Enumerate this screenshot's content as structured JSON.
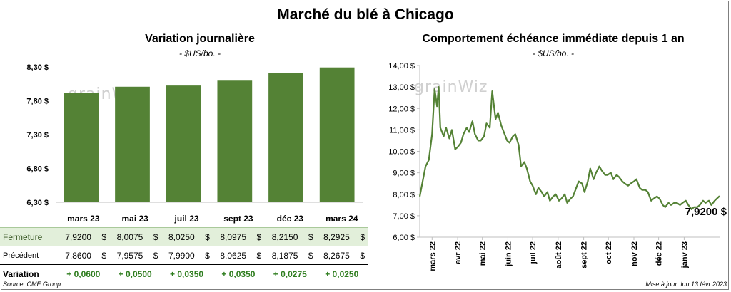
{
  "title": "Marché du blé à Chicago",
  "left": {
    "title": "Variation  journalière",
    "unit": "- $US/bo. -",
    "watermark": "grainWiz"
  },
  "right": {
    "title": "Comportement  échéance immédiate depuis 1 an",
    "unit": "- $US/bo. -",
    "watermark": "grainWiz",
    "last_value_label": "7,9200 $"
  },
  "table": {
    "headers": [
      "mars 23",
      "mai 23",
      "juil 23",
      "sept 23",
      "déc 23",
      "mars 24"
    ],
    "close_label": "Fermeture",
    "close_values": [
      "7,9200",
      "8,0075",
      "8,0250",
      "8,0975",
      "8,2150",
      "8,2925"
    ],
    "prev_label": "Précédent",
    "prev_values": [
      "7,8600",
      "7,9575",
      "7,9900",
      "8,0625",
      "8,1875",
      "8,2675"
    ],
    "var_label": "Variation",
    "var_values": [
      "+ 0,0600",
      "+ 0,0500",
      "+ 0,0350",
      "+ 0,0350",
      "+ 0,0275",
      "+ 0,0250"
    ],
    "currency": "$"
  },
  "footer": {
    "source": "Source: CME Group",
    "updated": "Mise à jour: lun 13 févr 2023"
  },
  "colors": {
    "bar": "#548235",
    "line": "#548235",
    "close_row": "#e2efda",
    "variation": "#2e7d1e"
  },
  "chart_data": [
    {
      "type": "bar",
      "title": "Variation  journalière",
      "categories": [
        "mars 23",
        "mai 23",
        "juil 23",
        "sept 23",
        "déc 23",
        "mars 24"
      ],
      "values": [
        7.92,
        8.0075,
        8.025,
        8.0975,
        8.215,
        8.2925
      ],
      "ylim": [
        6.3,
        8.3
      ],
      "yticks": [
        6.3,
        6.8,
        7.3,
        7.8,
        8.3
      ],
      "ytick_labels": [
        "6,30 $",
        "6,80 $",
        "7,30 $",
        "7,80 $",
        "8,30 $"
      ],
      "grid": false
    },
    {
      "type": "line",
      "title": "Comportement  échéance immédiate depuis 1 an",
      "xlim": [
        "2022-02-14",
        "2023-02-13"
      ],
      "xticks": [
        "2022-03-01",
        "2022-04-01",
        "2022-05-01",
        "2022-06-01",
        "2022-07-01",
        "2022-08-01",
        "2022-09-01",
        "2022-10-01",
        "2022-11-01",
        "2022-12-01",
        "2023-01-01"
      ],
      "xtick_labels": [
        "mars 22",
        "avr 22",
        "mai 22",
        "juin 22",
        "juil 22",
        "août 22",
        "sept 22",
        "oct 22",
        "nov 22",
        "déc 22",
        "janv 23"
      ],
      "ylim": [
        6.0,
        14.0
      ],
      "yticks": [
        6,
        7,
        8,
        9,
        10,
        11,
        12,
        13,
        14
      ],
      "ytick_labels": [
        "6,00 $",
        "7,00 $",
        "8,00 $",
        "9,00 $",
        "10,00 $",
        "11,00 $",
        "12,00 $",
        "13,00 $",
        "14,00 $"
      ],
      "grid": false,
      "series": [
        {
          "x": [
            "2022-02-14",
            "2022-02-21",
            "2022-02-25",
            "2022-03-01",
            "2022-03-04",
            "2022-03-07",
            "2022-03-09",
            "2022-03-11",
            "2022-03-15",
            "2022-03-18",
            "2022-03-22",
            "2022-03-25",
            "2022-03-29",
            "2022-04-01",
            "2022-04-05",
            "2022-04-08",
            "2022-04-12",
            "2022-04-15",
            "2022-04-19",
            "2022-04-22",
            "2022-04-26",
            "2022-04-29",
            "2022-05-03",
            "2022-05-06",
            "2022-05-10",
            "2022-05-13",
            "2022-05-17",
            "2022-05-20",
            "2022-05-24",
            "2022-05-27",
            "2022-05-31",
            "2022-06-03",
            "2022-06-07",
            "2022-06-10",
            "2022-06-14",
            "2022-06-17",
            "2022-06-21",
            "2022-06-24",
            "2022-06-28",
            "2022-07-01",
            "2022-07-05",
            "2022-07-08",
            "2022-07-12",
            "2022-07-15",
            "2022-07-19",
            "2022-07-22",
            "2022-07-26",
            "2022-07-29",
            "2022-08-02",
            "2022-08-05",
            "2022-08-09",
            "2022-08-12",
            "2022-08-16",
            "2022-08-19",
            "2022-08-23",
            "2022-08-26",
            "2022-08-30",
            "2022-09-02",
            "2022-09-06",
            "2022-09-09",
            "2022-09-13",
            "2022-09-16",
            "2022-09-20",
            "2022-09-23",
            "2022-09-27",
            "2022-09-30",
            "2022-10-04",
            "2022-10-07",
            "2022-10-11",
            "2022-10-14",
            "2022-10-18",
            "2022-10-21",
            "2022-10-25",
            "2022-10-28",
            "2022-11-01",
            "2022-11-04",
            "2022-11-08",
            "2022-11-11",
            "2022-11-15",
            "2022-11-18",
            "2022-11-22",
            "2022-11-25",
            "2022-11-29",
            "2022-12-02",
            "2022-12-06",
            "2022-12-09",
            "2022-12-13",
            "2022-12-16",
            "2022-12-20",
            "2022-12-23",
            "2022-12-27",
            "2022-12-30",
            "2023-01-03",
            "2023-01-06",
            "2023-01-10",
            "2023-01-13",
            "2023-01-17",
            "2023-01-20",
            "2023-01-24",
            "2023-01-27",
            "2023-01-31",
            "2023-02-03",
            "2023-02-07",
            "2023-02-13"
          ],
          "y": [
            7.9,
            9.3,
            9.6,
            10.8,
            12.9,
            12.1,
            13.0,
            11.1,
            10.7,
            11.1,
            10.6,
            11.0,
            10.1,
            10.2,
            10.4,
            10.8,
            11.1,
            10.9,
            11.4,
            10.8,
            10.5,
            10.5,
            10.7,
            11.3,
            11.1,
            12.8,
            11.5,
            11.8,
            11.2,
            10.9,
            10.5,
            10.4,
            10.7,
            10.8,
            10.3,
            9.3,
            9.5,
            9.2,
            8.6,
            8.4,
            8.0,
            8.3,
            8.1,
            7.9,
            8.1,
            7.7,
            7.9,
            8.0,
            7.7,
            7.8,
            8.0,
            7.6,
            7.8,
            7.9,
            8.3,
            8.6,
            8.5,
            8.1,
            8.6,
            9.2,
            8.7,
            9.0,
            9.3,
            9.1,
            8.9,
            8.9,
            9.0,
            8.7,
            8.9,
            8.8,
            8.6,
            8.5,
            8.4,
            8.5,
            8.6,
            8.7,
            8.3,
            8.2,
            8.2,
            8.1,
            7.7,
            7.8,
            7.9,
            7.8,
            7.5,
            7.4,
            7.6,
            7.5,
            7.6,
            7.6,
            7.5,
            7.6,
            7.7,
            7.5,
            7.3,
            7.4,
            7.4,
            7.5,
            7.7,
            7.6,
            7.7,
            7.5,
            7.7,
            7.92
          ]
        }
      ]
    }
  ]
}
